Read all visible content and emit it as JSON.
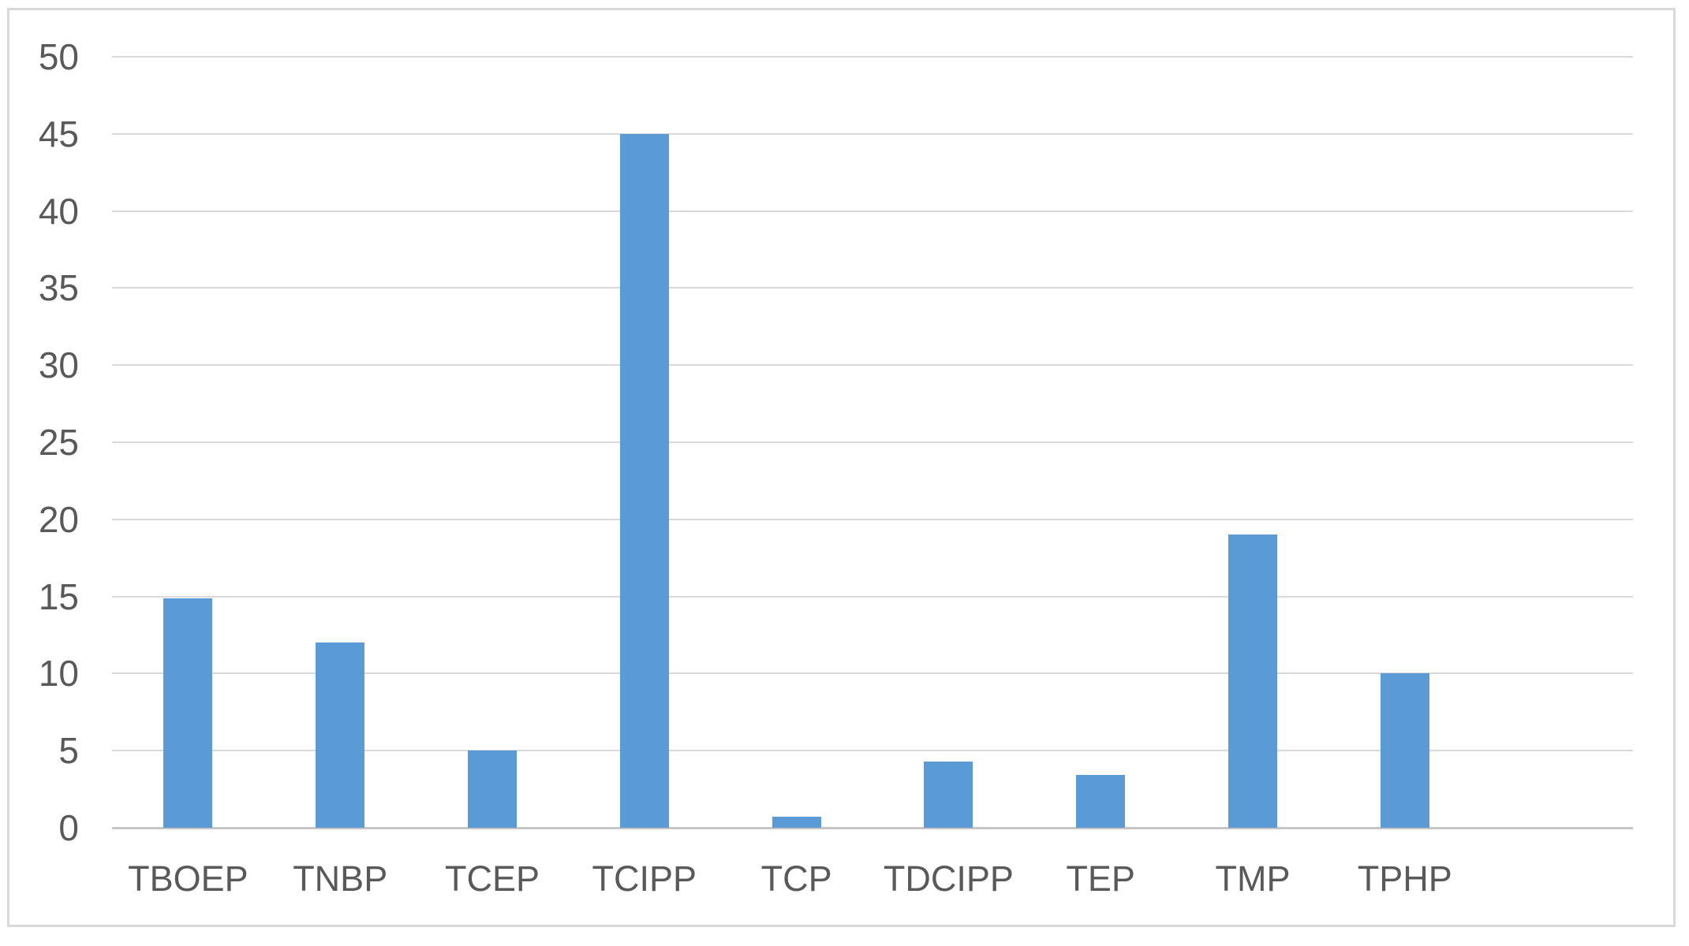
{
  "chart_data": {
    "type": "bar",
    "title": "",
    "xlabel": "",
    "ylabel": "",
    "categories": [
      "TBOEP",
      "TNBP",
      "TCEP",
      "TCIPP",
      "TCP",
      "TDCIPP",
      "TEP",
      "TMP",
      "TPHP"
    ],
    "values": [
      14.9,
      12,
      5,
      45,
      0.7,
      4.3,
      3.4,
      19,
      10
    ],
    "ylim": [
      0,
      50
    ],
    "ytick_step": 5,
    "ytick_labels": [
      "0",
      "5",
      "10",
      "15",
      "20",
      "25",
      "30",
      "35",
      "40",
      "45",
      "50"
    ],
    "grid": true,
    "legend_position": "none",
    "category_slots": 10,
    "colors": {
      "bar_fill": "#5B9BD5",
      "gridline": "#D9D9D9",
      "axis_line": "#C6C6C6",
      "label_text": "#595959",
      "frame_border": "#D9D9D9",
      "background": "#FFFFFF"
    }
  }
}
